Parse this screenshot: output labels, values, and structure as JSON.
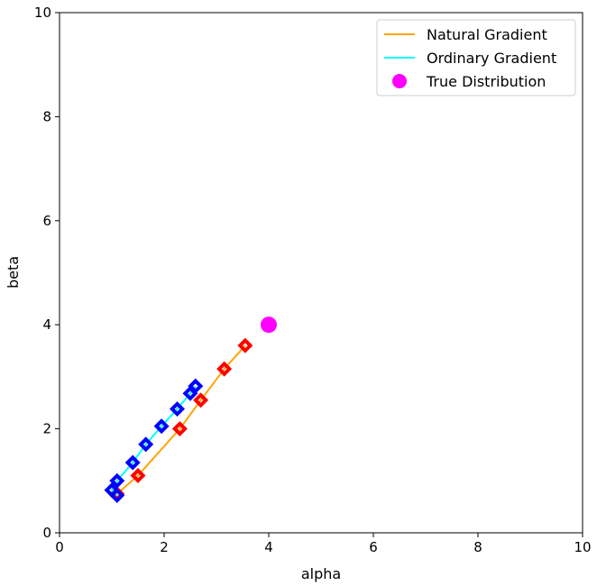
{
  "chart_data": {
    "type": "line",
    "xlabel": "alpha",
    "ylabel": "beta",
    "xlim": [
      0,
      10
    ],
    "ylim": [
      0,
      10
    ],
    "xticks": [
      0,
      2,
      4,
      6,
      8,
      10
    ],
    "yticks": [
      0,
      2,
      4,
      6,
      8,
      10
    ],
    "grid": false,
    "legend_position": "top-right",
    "series": [
      {
        "name": "Natural Gradient",
        "kind": "line",
        "color": "#ffa500",
        "marker_color": "#ff0000",
        "points": [
          [
            1.1,
            0.75
          ],
          [
            1.5,
            1.1
          ],
          [
            2.3,
            2.0
          ],
          [
            2.7,
            2.55
          ],
          [
            3.15,
            3.15
          ],
          [
            3.55,
            3.6
          ]
        ]
      },
      {
        "name": "Ordinary Gradient",
        "kind": "line",
        "color": "#00ffff",
        "marker_color": "#0000ff",
        "points": [
          [
            1.1,
            0.72
          ],
          [
            1.0,
            0.82
          ],
          [
            1.1,
            1.0
          ],
          [
            1.4,
            1.35
          ],
          [
            1.65,
            1.7
          ],
          [
            1.95,
            2.05
          ],
          [
            2.25,
            2.38
          ],
          [
            2.5,
            2.68
          ],
          [
            2.6,
            2.82
          ]
        ]
      },
      {
        "name": "True Distribution",
        "kind": "point",
        "color": "#ff00ff",
        "points": [
          [
            4.0,
            4.0
          ]
        ]
      }
    ]
  }
}
